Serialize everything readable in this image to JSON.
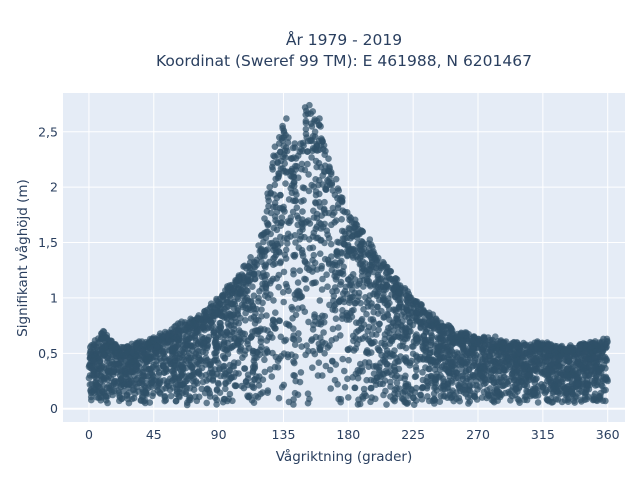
{
  "chart_data": {
    "type": "scatter",
    "title": [
      "År 1979 - 2019",
      "Koordinat (Sweref 99 TM): E 461988, N 6201467"
    ],
    "xlabel": "Vågriktning (grader)",
    "ylabel": "Signifikant våghöjd (m)",
    "xlim": [
      -18,
      372
    ],
    "ylim": [
      -0.12,
      2.85
    ],
    "x_ticks": [
      0,
      45,
      90,
      135,
      180,
      225,
      270,
      315,
      360
    ],
    "x_tick_labels": [
      "0",
      "45",
      "90",
      "135",
      "180",
      "225",
      "270",
      "315",
      "360"
    ],
    "y_ticks": [
      0,
      0.5,
      1,
      1.5,
      2,
      2.5
    ],
    "y_tick_labels": [
      "0",
      "0,5",
      "1",
      "1,5",
      "2",
      "2,5"
    ],
    "grid": true,
    "marker_color": "#2f5168",
    "background_color": "#e5ecf6",
    "envelope_description": "dense point cloud; upper envelope of significant wave height by direction",
    "envelope": {
      "x": [
        0,
        10,
        20,
        30,
        45,
        60,
        75,
        90,
        100,
        110,
        120,
        128,
        135,
        140,
        145,
        150,
        155,
        160,
        165,
        170,
        180,
        190,
        200,
        210,
        225,
        240,
        255,
        270,
        285,
        300,
        315,
        330,
        345,
        360
      ],
      "y_max": [
        0.55,
        0.7,
        0.55,
        0.58,
        0.65,
        0.75,
        0.82,
        1.0,
        1.15,
        1.3,
        1.55,
        2.3,
        2.6,
        2.45,
        2.3,
        2.65,
        2.75,
        2.6,
        2.3,
        2.15,
        1.75,
        1.6,
        1.4,
        1.25,
        1.0,
        0.82,
        0.7,
        0.65,
        0.62,
        0.58,
        0.6,
        0.55,
        0.6,
        0.62
      ],
      "y_min": [
        0.05,
        0.05,
        0.05,
        0.05,
        0.05,
        0.02,
        0.02,
        0.03,
        0.03,
        0.03,
        0.03,
        0.03,
        0.03,
        0.03,
        0.03,
        0.03,
        0.03,
        0.03,
        0.03,
        0.03,
        0.03,
        0.03,
        0.03,
        0.03,
        0.03,
        0.03,
        0.03,
        0.04,
        0.05,
        0.05,
        0.05,
        0.05,
        0.05,
        0.05
      ]
    },
    "notable_points": [
      {
        "x": 153,
        "y": 2.74
      },
      {
        "x": 150,
        "y": 2.72
      },
      {
        "x": 137,
        "y": 2.62
      },
      {
        "x": 160,
        "y": 2.62
      },
      {
        "x": 10,
        "y": 0.7
      },
      {
        "x": 282,
        "y": 0.65
      },
      {
        "x": 357,
        "y": 0.63
      }
    ]
  }
}
